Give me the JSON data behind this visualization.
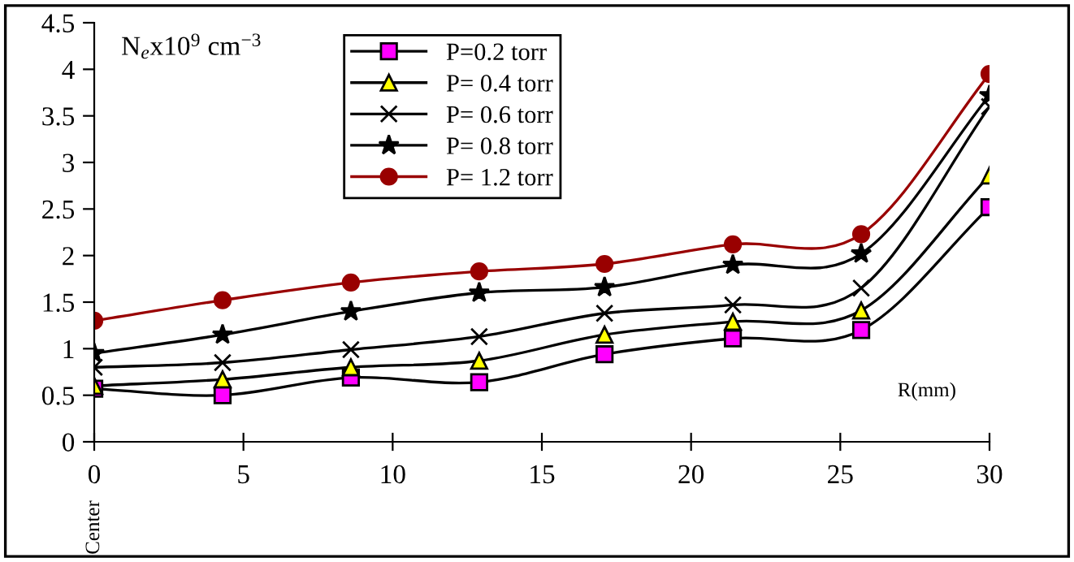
{
  "chart_data": {
    "type": "line",
    "ylabel": "N$_{e}$x10$^{9}$ cm$^{−3}$",
    "xlabel": "R(mm)",
    "annotations": [
      "Center"
    ],
    "x": [
      0,
      4.3,
      8.6,
      12.9,
      17.1,
      21.4,
      25.7,
      30
    ],
    "xlim": [
      0,
      30
    ],
    "xticks": [
      0,
      5,
      10,
      15,
      20,
      25,
      30
    ],
    "ylim": [
      0,
      4.5
    ],
    "yticks": [
      0,
      0.5,
      1,
      1.5,
      2,
      2.5,
      3,
      3.5,
      4,
      4.5
    ],
    "grid": false,
    "legend": "top",
    "series": [
      {
        "name": "P=0.2 torr",
        "color": "#ff00ff",
        "marker": "square",
        "values": [
          0.57,
          0.5,
          0.69,
          0.64,
          0.94,
          1.11,
          1.2,
          2.52
        ]
      },
      {
        "name": "P= 0.4 torr",
        "color": "#ffff00",
        "marker": "triangle",
        "values": [
          0.6,
          0.67,
          0.8,
          0.87,
          1.15,
          1.29,
          1.41,
          2.86
        ]
      },
      {
        "name": "P= 0.6 torr",
        "color": "#000000",
        "marker": "cross",
        "values": [
          0.8,
          0.85,
          0.99,
          1.13,
          1.38,
          1.47,
          1.65,
          3.6
        ]
      },
      {
        "name": "P= 0.8 torr",
        "color": "#000000",
        "marker": "star",
        "values": [
          0.95,
          1.15,
          1.4,
          1.6,
          1.66,
          1.9,
          2.02,
          3.72
        ]
      },
      {
        "name": "P= 1.2 torr",
        "color": "#990000",
        "marker": "circle",
        "values": [
          1.3,
          1.52,
          1.71,
          1.83,
          1.91,
          2.12,
          2.23,
          3.95
        ]
      }
    ]
  }
}
